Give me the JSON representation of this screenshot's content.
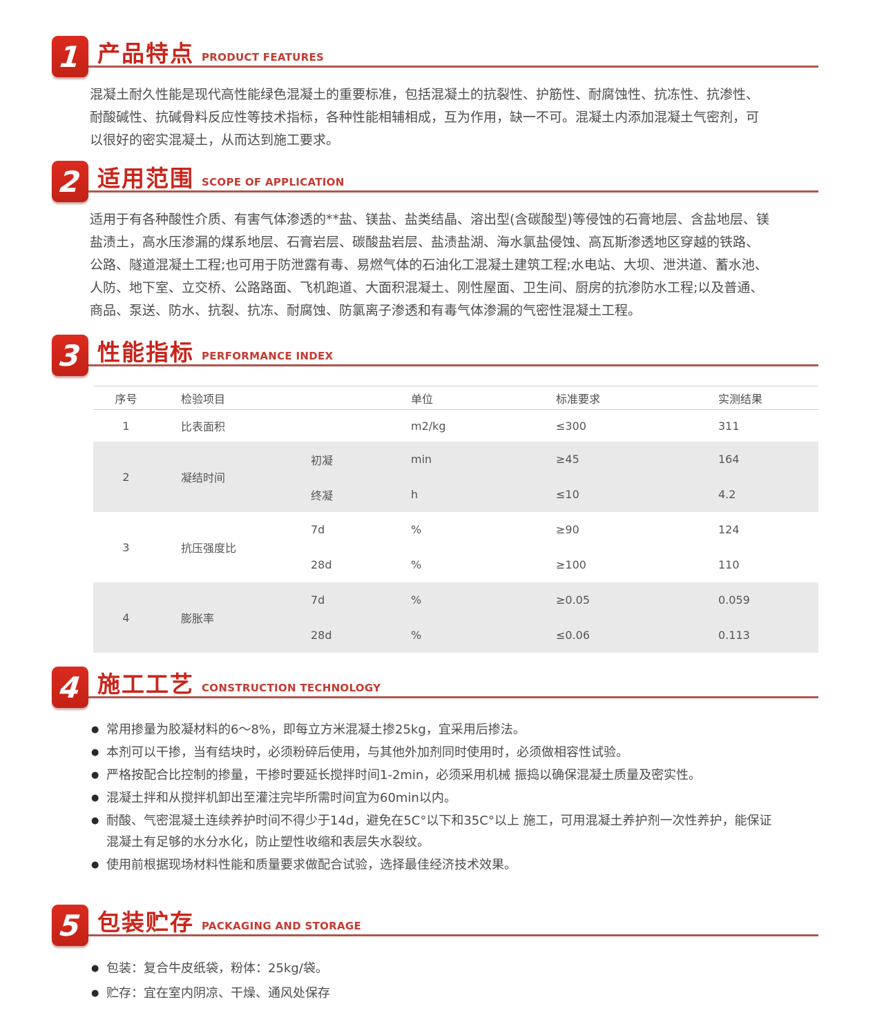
{
  "colors": {
    "accent_red": "#ca241b",
    "badge_red": "#d8251c",
    "underline_red": "#b0544c",
    "table_band_gray": "#e9e9e9",
    "body_text": "#4c4c4c"
  },
  "sections": [
    {
      "number": "1",
      "title": "产品特点",
      "subtitle": "PRODUCT FEATURES",
      "lines": [
        "混凝土耐久性能是现代高性能绿色混凝土的重要标准，包括混凝土的抗裂性、护筋性、耐腐蚀性、抗冻性、抗渗性、",
        "耐酸碱性、抗碱骨料反应性等技术指标，各种性能相辅相成，互为作用，缺一不可。混凝土内添加混凝土气密剂，可",
        "以很好的密实混凝土，从而达到施工要求。"
      ]
    },
    {
      "number": "2",
      "title": "适用范围",
      "subtitle": "SCOPE OF APPLICATION",
      "lines": [
        "适用于有各种酸性介质、有害气体渗透的**盐、镁盐、盐类结晶、溶出型(含碳酸型)等侵蚀的石膏地层、含盐地层、镁",
        "盐渍土，高水压渗漏的煤系地层、石膏岩层、碳酸盐岩层、盐渍盐湖、海水氯盐侵蚀、高瓦斯渗透地区穿越的铁路、",
        "公路、隧道混凝土工程;也可用于防泄露有毒、易燃气体的石油化工混凝土建筑工程;水电站、大坝、泄洪道、蓄水池、",
        "人防、地下室、立交桥、公路路面、飞机跑道、大面积混凝土、刚性屋面、卫生间、厨房的抗渗防水工程;以及普通、",
        "商品、泵送、防水、抗裂、抗冻、耐腐蚀、防氯离子渗透和有毒气体渗漏的气密性混凝土工程。"
      ]
    },
    {
      "number": "3",
      "title": "性能指标",
      "subtitle": "PERFORMANCE INDEX",
      "table": {
        "headers": [
          "序号",
          "检验项目",
          "单位",
          "标准要求",
          "实测结果"
        ],
        "rows": [
          {
            "no": "1",
            "item": "比表面积",
            "sub": [
              {
                "name": "",
                "unit": "m2/kg",
                "standard": "≤300",
                "result": "311"
              }
            ]
          },
          {
            "no": "2",
            "item": "凝结时间",
            "sub": [
              {
                "name": "初凝",
                "unit": "min",
                "standard": "≥45",
                "result": "164"
              },
              {
                "name": "终凝",
                "unit": "h",
                "standard": "≤10",
                "result": "4.2"
              }
            ]
          },
          {
            "no": "3",
            "item": "抗压强度比",
            "sub": [
              {
                "name": "7d",
                "unit": "%",
                "standard": "≥90",
                "result": "124"
              },
              {
                "name": "28d",
                "unit": "%",
                "standard": "≥100",
                "result": "110"
              }
            ]
          },
          {
            "no": "4",
            "item": "膨胀率",
            "sub": [
              {
                "name": "7d",
                "unit": "%",
                "standard": "≥0.05",
                "result": "0.059"
              },
              {
                "name": "28d",
                "unit": "%",
                "standard": "≤0.06",
                "result": "0.113"
              }
            ]
          }
        ]
      }
    },
    {
      "number": "4",
      "title": "施工工艺",
      "subtitle": "CONSTRUCTION TECHNOLOGY",
      "bullets": [
        {
          "lines": [
            "常用掺量为胶凝材料的6～8%，即每立方米混凝土掺25kg，宜采用后掺法。"
          ]
        },
        {
          "lines": [
            "本剂可以干掺，当有结块时，必须粉碎后使用，与其他外加剂同时使用时，必须做相容性试验。"
          ]
        },
        {
          "lines": [
            "严格按配合比控制的掺量，干掺时要延长搅拌时间1-2min，必须采用机械 振捣以确保混凝土质量及密实性。"
          ]
        },
        {
          "lines": [
            "混凝土拌和从搅拌机卸出至灌注完毕所需时间宜为60min以内。"
          ]
        },
        {
          "lines": [
            "耐酸、气密混凝土连续养护时间不得少于14d，避免在5C°以下和35C°以上 施工，可用混凝土养护剂一次性养护，能保证",
            "混凝土有足够的水分水化，防止塑性收缩和表层失水裂纹。"
          ]
        },
        {
          "lines": [
            "使用前根据现场材料性能和质量要求做配合试验，选择最佳经济技术效果。"
          ]
        }
      ]
    },
    {
      "number": "5",
      "title": "包装贮存",
      "subtitle": "PACKAGING AND STORAGE",
      "bullets": [
        {
          "lines": [
            "包装：复合牛皮纸袋，粉体：25kg/袋。"
          ]
        },
        {
          "lines": [
            "贮存：宜在室内阴凉、干燥、通风处保存"
          ]
        }
      ]
    }
  ]
}
